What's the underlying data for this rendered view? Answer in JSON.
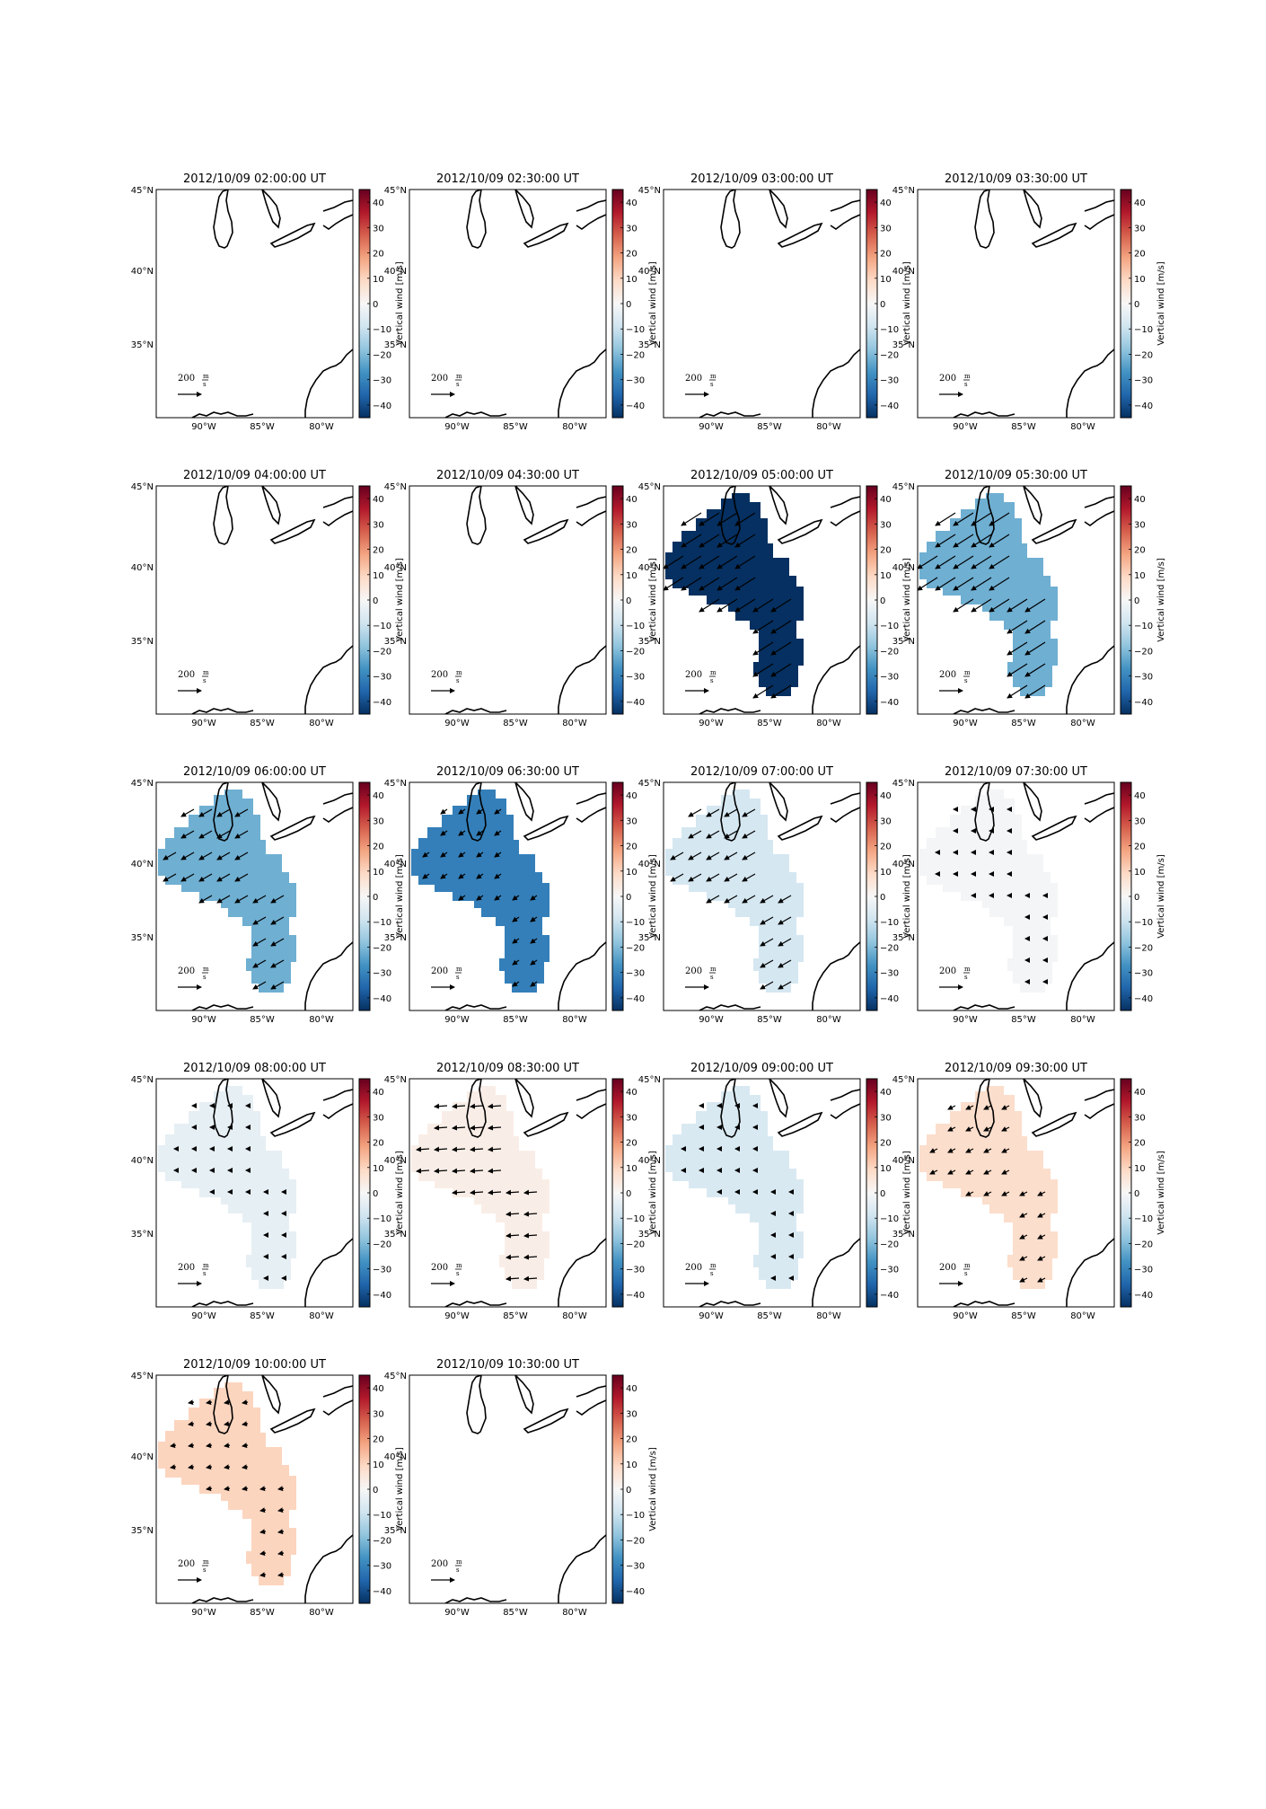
{
  "figure": {
    "units_label": "Vertical wind [m/s]",
    "colorbar_ticks": [
      "40",
      "30",
      "20",
      "10",
      "0",
      "−10",
      "−20",
      "−30",
      "−40"
    ],
    "x_ticks": [
      "90°W",
      "85°W",
      "80°W"
    ],
    "y_ticks": [
      "45°N",
      "40°N",
      "35°N"
    ],
    "reference_vector": {
      "value": "200",
      "unit_top": "m",
      "unit_bottom": "s"
    },
    "colormap": {
      "min": -45,
      "max": 45,
      "low": "#053061",
      "mid": "#f7f7f7",
      "high": "#67001f"
    }
  },
  "panels": [
    {
      "title": "2012/10/09 02:00:00 UT",
      "value": null,
      "arrows": "none"
    },
    {
      "title": "2012/10/09 02:30:00 UT",
      "value": null,
      "arrows": "none"
    },
    {
      "title": "2012/10/09 03:00:00 UT",
      "value": null,
      "arrows": "none"
    },
    {
      "title": "2012/10/09 03:30:00 UT",
      "value": null,
      "arrows": "none"
    },
    {
      "title": "2012/10/09 04:00:00 UT",
      "value": null,
      "arrows": "none"
    },
    {
      "title": "2012/10/09 04:30:00 UT",
      "value": null,
      "arrows": "none"
    },
    {
      "title": "2012/10/09 05:00:00 UT",
      "value": -45,
      "arrows": "sw-strong"
    },
    {
      "title": "2012/10/09 05:30:00 UT",
      "value": -22,
      "arrows": "sw-strong"
    },
    {
      "title": "2012/10/09 06:00:00 UT",
      "value": -22,
      "arrows": "sw-medium"
    },
    {
      "title": "2012/10/09 06:30:00 UT",
      "value": -31,
      "arrows": "sw-small"
    },
    {
      "title": "2012/10/09 07:00:00 UT",
      "value": -8,
      "arrows": "sw-medium"
    },
    {
      "title": "2012/10/09 07:30:00 UT",
      "value": -1,
      "arrows": "dots"
    },
    {
      "title": "2012/10/09 08:00:00 UT",
      "value": -4,
      "arrows": "dots"
    },
    {
      "title": "2012/10/09 08:30:00 UT",
      "value": 3,
      "arrows": "w-medium"
    },
    {
      "title": "2012/10/09 09:00:00 UT",
      "value": -7,
      "arrows": "dots"
    },
    {
      "title": "2012/10/09 09:30:00 UT",
      "value": 8,
      "arrows": "se-small"
    },
    {
      "title": "2012/10/09 10:00:00 UT",
      "value": 10,
      "arrows": "w-small"
    },
    {
      "title": "2012/10/09 10:30:00 UT",
      "value": null,
      "arrows": "none"
    }
  ]
}
